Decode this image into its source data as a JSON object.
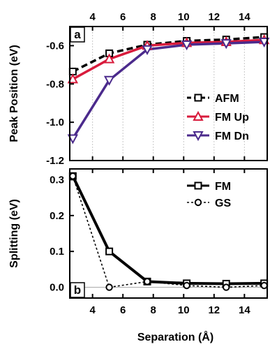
{
  "chart_data": [
    {
      "panel_label": "a",
      "type": "line",
      "ylabel": "Peak Position (eV)",
      "xlim": [
        2.5,
        15.5
      ],
      "ylim": [
        -1.2,
        -0.5
      ],
      "yticks": [
        "-0.6",
        "-0.8",
        "-1.0",
        "-1.2"
      ],
      "ytick_values": [
        -0.6,
        -0.8,
        -1.0,
        -1.2
      ],
      "xticks": [
        "4",
        "6",
        "8",
        "10",
        "12",
        "14"
      ],
      "xtick_values": [
        4,
        6,
        8,
        10,
        12,
        14
      ],
      "x_tick_labels_position": "top",
      "vertical_grid": true,
      "legend_position": "lower-right",
      "series": [
        {
          "name": "AFM",
          "color": "#000000",
          "dash": "dashed",
          "marker": "square",
          "x": [
            2.7,
            5.1,
            7.6,
            10.2,
            12.8,
            15.3
          ],
          "y": [
            -0.735,
            -0.64,
            -0.595,
            -0.575,
            -0.568,
            -0.555
          ]
        },
        {
          "name": "FM Up",
          "color": "#d81b3c",
          "dash": "solid",
          "marker": "triangle-up",
          "x": [
            2.7,
            5.1,
            7.6,
            10.2,
            12.8,
            15.3
          ],
          "y": [
            -0.775,
            -0.67,
            -0.6,
            -0.585,
            -0.58,
            -0.57
          ]
        },
        {
          "name": "FM Dn",
          "color": "#4b2a8c",
          "dash": "solid",
          "marker": "triangle-down",
          "x": [
            2.7,
            5.1,
            7.6,
            10.2,
            12.8,
            15.3
          ],
          "y": [
            -1.085,
            -0.78,
            -0.62,
            -0.595,
            -0.588,
            -0.58
          ]
        }
      ]
    },
    {
      "panel_label": "b",
      "type": "line",
      "xlabel": "Separation (Å)",
      "ylabel": "Splitting (eV)",
      "xlim": [
        2.5,
        15.5
      ],
      "ylim": [
        -0.03,
        0.33
      ],
      "yticks": [
        "0.3",
        "0.2",
        "0.1",
        "0.0"
      ],
      "ytick_values": [
        0.3,
        0.2,
        0.1,
        0.0
      ],
      "xticks": [
        "4",
        "6",
        "8",
        "10",
        "12",
        "14"
      ],
      "xtick_values": [
        4,
        6,
        8,
        10,
        12,
        14
      ],
      "x_tick_labels_position": "bottom",
      "vertical_grid": false,
      "zero_line": true,
      "legend_position": "top-right",
      "series": [
        {
          "name": "FM",
          "color": "#000000",
          "dash": "solid",
          "marker": "square",
          "x": [
            2.7,
            5.1,
            7.6,
            10.2,
            12.8,
            15.3
          ],
          "y": [
            0.31,
            0.1,
            0.016,
            0.011,
            0.01,
            0.011
          ]
        },
        {
          "name": "GS",
          "color": "#000000",
          "dash": "dotted",
          "marker": "circle",
          "x": [
            2.7,
            5.1,
            7.6,
            10.2,
            12.8,
            15.3
          ],
          "y": [
            0.31,
            0.0,
            0.016,
            0.005,
            0.0,
            0.005
          ]
        }
      ]
    }
  ]
}
